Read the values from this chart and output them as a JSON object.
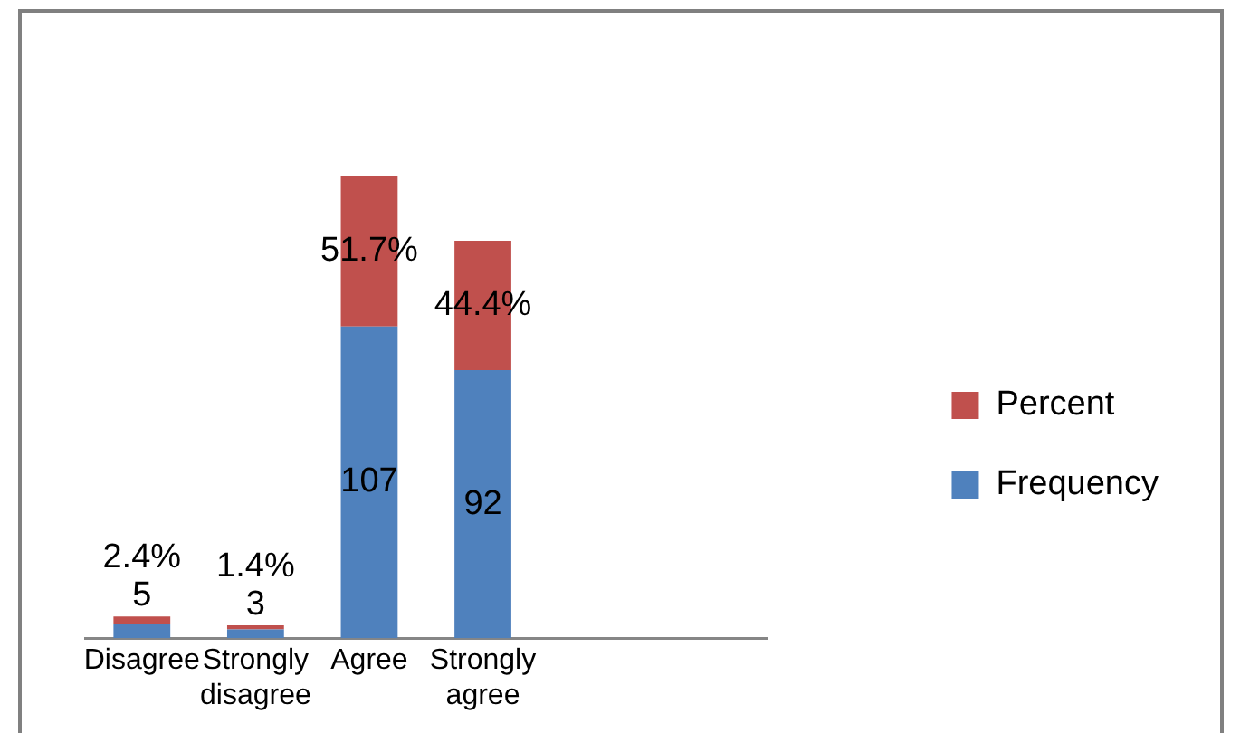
{
  "chart_data": {
    "type": "bar",
    "stacked": true,
    "categories": [
      "Disagree",
      "Strongly disagree",
      "Agree",
      "Strongly agree",
      null,
      null
    ],
    "series": [
      {
        "name": "Frequency",
        "color": "#4f81bd",
        "values": [
          5,
          3,
          107,
          92,
          null,
          null
        ],
        "value_labels": [
          "5",
          "3",
          "107",
          "92",
          null,
          null
        ]
      },
      {
        "name": "Percent",
        "color": "#c0504d",
        "values": [
          2.4,
          1.4,
          51.7,
          44.4,
          null,
          null
        ],
        "value_labels": [
          "2.4%",
          "1.4%",
          "51.7%",
          "44.4%",
          null,
          null
        ]
      }
    ],
    "legend": "right",
    "tick_labels": "x"
  }
}
